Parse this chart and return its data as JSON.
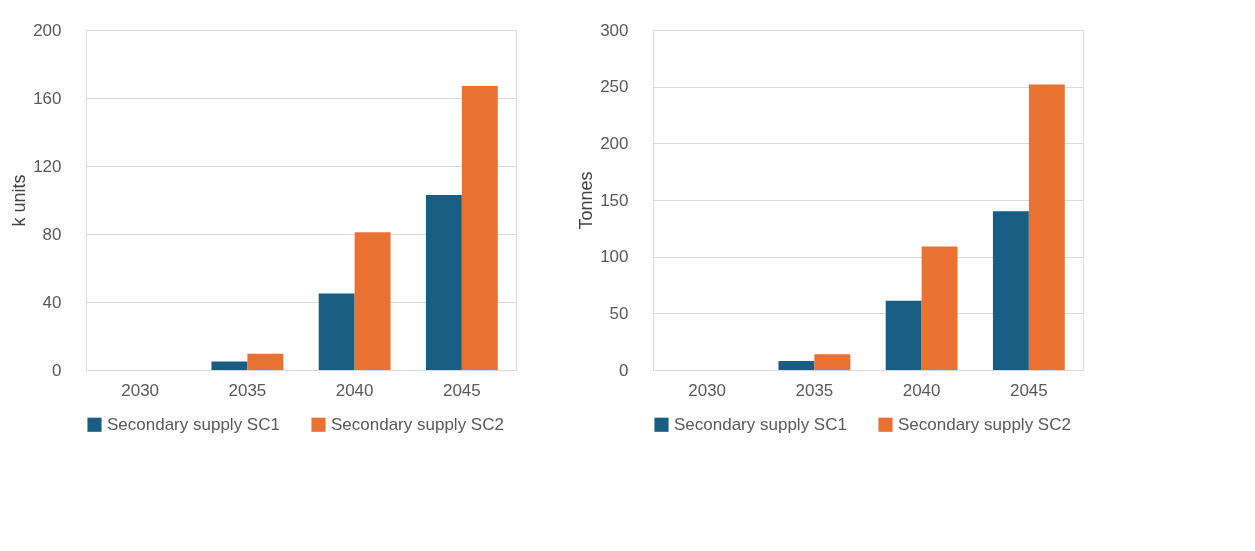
{
  "chart_data": [
    {
      "type": "bar",
      "ylabel": "k units",
      "categories": [
        "2030",
        "2035",
        "2040",
        "2045"
      ],
      "series": [
        {
          "name": "Secondary supply SC1",
          "color": "#175e82",
          "values": [
            0,
            5,
            45,
            103
          ]
        },
        {
          "name": "Secondary supply SC2",
          "color": "#e97132",
          "values": [
            0,
            9.5,
            81,
            167
          ]
        }
      ],
      "ylim": [
        0,
        200
      ],
      "yticks": [
        0,
        40,
        80,
        120,
        160,
        200
      ],
      "grid": "y",
      "legend": "bottom"
    },
    {
      "type": "bar",
      "ylabel": "Tonnes",
      "categories": [
        "2030",
        "2035",
        "2040",
        "2045"
      ],
      "series": [
        {
          "name": "Secondary supply SC1",
          "color": "#175e82",
          "values": [
            0,
            8,
            61,
            140
          ]
        },
        {
          "name": "Secondary supply SC2",
          "color": "#e97132",
          "values": [
            0,
            14,
            109,
            252
          ]
        }
      ],
      "ylim": [
        0,
        300
      ],
      "yticks": [
        0,
        50,
        100,
        150,
        200,
        250,
        300
      ],
      "grid": "y",
      "legend": "bottom"
    }
  ]
}
